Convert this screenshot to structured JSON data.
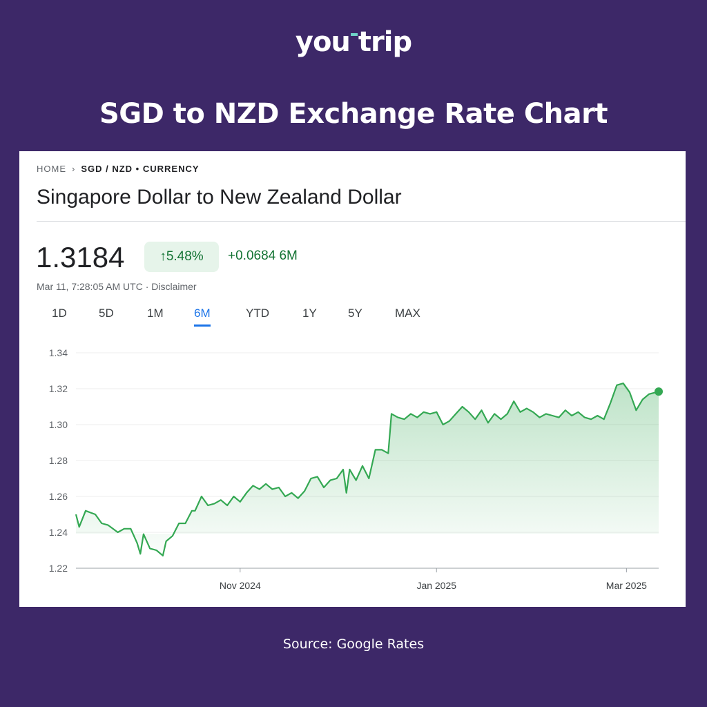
{
  "logo": {
    "part1": "you",
    "part2": "trip"
  },
  "headline": "SGD to NZD Exchange Rate Chart",
  "breadcrumb": {
    "home": "HOME",
    "current": "SGD / NZD • CURRENCY"
  },
  "page_title": "Singapore Dollar to New Zealand Dollar",
  "quote": {
    "price": "1.3184",
    "percent": "5.48%",
    "change": "+0.0684 6M",
    "timestamp": "Mar 11, 7:28:05 AM UTC · Disclaimer"
  },
  "tabs": [
    {
      "label": "1D"
    },
    {
      "label": "5D"
    },
    {
      "label": "1M"
    },
    {
      "label": "6M"
    },
    {
      "label": "YTD"
    },
    {
      "label": "1Y"
    },
    {
      "label": "5Y"
    },
    {
      "label": "MAX"
    }
  ],
  "active_tab": "6M",
  "source": "Source: Google Rates",
  "colors": {
    "background": "#3d2868",
    "line": "#34a853",
    "positive": "#137333",
    "active_tab": "#1a73e8"
  },
  "chart_data": {
    "type": "area",
    "ylim": [
      1.22,
      1.34
    ],
    "yticks": [
      "1.22",
      "1.24",
      "1.26",
      "1.28",
      "1.30",
      "1.32",
      "1.34"
    ],
    "xticks": [
      {
        "label": "Nov 2024",
        "date": "2024-11-01"
      },
      {
        "label": "Jan 2025",
        "date": "2025-01-01"
      },
      {
        "label": "Mar 2025",
        "date": "2025-03-01"
      }
    ],
    "xlim": [
      "2024-09-11",
      "2025-03-11"
    ],
    "grid": true,
    "series": [
      {
        "points": [
          [
            "2024-09-11",
            1.25
          ],
          [
            "2024-09-12",
            1.243
          ],
          [
            "2024-09-14",
            1.252
          ],
          [
            "2024-09-17",
            1.25
          ],
          [
            "2024-09-19",
            1.245
          ],
          [
            "2024-09-21",
            1.244
          ],
          [
            "2024-09-24",
            1.24
          ],
          [
            "2024-09-26",
            1.242
          ],
          [
            "2024-09-28",
            1.242
          ],
          [
            "2024-09-30",
            1.234
          ],
          [
            "2024-10-01",
            1.228
          ],
          [
            "2024-10-02",
            1.239
          ],
          [
            "2024-10-04",
            1.231
          ],
          [
            "2024-10-06",
            1.23
          ],
          [
            "2024-10-08",
            1.227
          ],
          [
            "2024-10-09",
            1.235
          ],
          [
            "2024-10-11",
            1.238
          ],
          [
            "2024-10-13",
            1.245
          ],
          [
            "2024-10-15",
            1.245
          ],
          [
            "2024-10-17",
            1.252
          ],
          [
            "2024-10-18",
            1.252
          ],
          [
            "2024-10-20",
            1.26
          ],
          [
            "2024-10-22",
            1.255
          ],
          [
            "2024-10-24",
            1.256
          ],
          [
            "2024-10-26",
            1.258
          ],
          [
            "2024-10-28",
            1.255
          ],
          [
            "2024-10-30",
            1.26
          ],
          [
            "2024-11-01",
            1.257
          ],
          [
            "2024-11-03",
            1.262
          ],
          [
            "2024-11-05",
            1.266
          ],
          [
            "2024-11-07",
            1.264
          ],
          [
            "2024-11-09",
            1.267
          ],
          [
            "2024-11-11",
            1.264
          ],
          [
            "2024-11-13",
            1.265
          ],
          [
            "2024-11-15",
            1.26
          ],
          [
            "2024-11-17",
            1.262
          ],
          [
            "2024-11-19",
            1.259
          ],
          [
            "2024-11-21",
            1.263
          ],
          [
            "2024-11-23",
            1.27
          ],
          [
            "2024-11-25",
            1.271
          ],
          [
            "2024-11-27",
            1.265
          ],
          [
            "2024-11-29",
            1.269
          ],
          [
            "2024-12-01",
            1.27
          ],
          [
            "2024-12-03",
            1.275
          ],
          [
            "2024-12-04",
            1.262
          ],
          [
            "2024-12-05",
            1.275
          ],
          [
            "2024-12-07",
            1.269
          ],
          [
            "2024-12-09",
            1.277
          ],
          [
            "2024-12-11",
            1.27
          ],
          [
            "2024-12-13",
            1.286
          ],
          [
            "2024-12-15",
            1.286
          ],
          [
            "2024-12-17",
            1.284
          ],
          [
            "2024-12-18",
            1.306
          ],
          [
            "2024-12-20",
            1.304
          ],
          [
            "2024-12-22",
            1.303
          ],
          [
            "2024-12-24",
            1.306
          ],
          [
            "2024-12-26",
            1.304
          ],
          [
            "2024-12-28",
            1.307
          ],
          [
            "2024-12-30",
            1.306
          ],
          [
            "2025-01-01",
            1.307
          ],
          [
            "2025-01-03",
            1.3
          ],
          [
            "2025-01-05",
            1.302
          ],
          [
            "2025-01-07",
            1.306
          ],
          [
            "2025-01-09",
            1.31
          ],
          [
            "2025-01-11",
            1.307
          ],
          [
            "2025-01-13",
            1.303
          ],
          [
            "2025-01-15",
            1.308
          ],
          [
            "2025-01-17",
            1.301
          ],
          [
            "2025-01-19",
            1.306
          ],
          [
            "2025-01-21",
            1.303
          ],
          [
            "2025-01-23",
            1.306
          ],
          [
            "2025-01-25",
            1.313
          ],
          [
            "2025-01-27",
            1.307
          ],
          [
            "2025-01-29",
            1.309
          ],
          [
            "2025-01-31",
            1.307
          ],
          [
            "2025-02-02",
            1.304
          ],
          [
            "2025-02-04",
            1.306
          ],
          [
            "2025-02-06",
            1.305
          ],
          [
            "2025-02-08",
            1.304
          ],
          [
            "2025-02-10",
            1.308
          ],
          [
            "2025-02-12",
            1.305
          ],
          [
            "2025-02-14",
            1.307
          ],
          [
            "2025-02-16",
            1.304
          ],
          [
            "2025-02-18",
            1.303
          ],
          [
            "2025-02-20",
            1.305
          ],
          [
            "2025-02-22",
            1.303
          ],
          [
            "2025-02-24",
            1.312
          ],
          [
            "2025-02-26",
            1.322
          ],
          [
            "2025-02-28",
            1.323
          ],
          [
            "2025-03-02",
            1.318
          ],
          [
            "2025-03-04",
            1.308
          ],
          [
            "2025-03-06",
            1.314
          ],
          [
            "2025-03-08",
            1.317
          ],
          [
            "2025-03-11",
            1.3184
          ]
        ]
      }
    ]
  }
}
